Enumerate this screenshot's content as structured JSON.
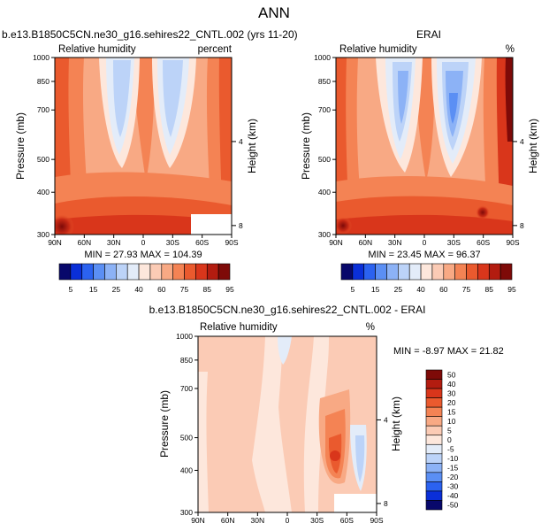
{
  "figure_title": "ANN",
  "chart_data": [
    {
      "type": "heatmap",
      "id": "model",
      "title": "b.e13.B1850C5CN.ne30_g16.sehires22_CNTL.002 (yrs 11-20)",
      "left_label": "Relative humidity",
      "right_label": "percent",
      "ylabel": "Pressure (mb)",
      "y2label": "Height (km)",
      "y_ticks": [
        "300",
        "400",
        "500",
        "700",
        "850",
        "1000"
      ],
      "y_tick_values": [
        300,
        400,
        500,
        700,
        850,
        1000
      ],
      "y2_ticks": [
        "8",
        "4"
      ],
      "y2_tick_values_km": [
        8,
        4
      ],
      "x_ticks": [
        "90N",
        "60N",
        "30N",
        "0",
        "30S",
        "60S",
        "90S"
      ],
      "x_tick_values": [
        90,
        60,
        30,
        0,
        -30,
        -60,
        -90
      ],
      "xlim": [
        90,
        -90
      ],
      "ylim": [
        1000,
        300
      ],
      "stats_text": "MIN = 27.93   MAX = 104.39",
      "min": 27.93,
      "max": 104.39,
      "colorbar_labels": [
        "5",
        "15",
        "25",
        "40",
        "60",
        "75",
        "85",
        "95"
      ]
    },
    {
      "type": "heatmap",
      "id": "obs",
      "title": "ERAI",
      "left_label": "Relative humidity",
      "right_label": "%",
      "ylabel": "Pressure (mb)",
      "y2label": "Height (km)",
      "y_ticks": [
        "300",
        "400",
        "500",
        "700",
        "850",
        "1000"
      ],
      "y_tick_values": [
        300,
        400,
        500,
        700,
        850,
        1000
      ],
      "y2_ticks": [
        "8",
        "4"
      ],
      "y2_tick_values_km": [
        8,
        4
      ],
      "x_ticks": [
        "90N",
        "60N",
        "30N",
        "0",
        "30S",
        "60S",
        "90S"
      ],
      "x_tick_values": [
        90,
        60,
        30,
        0,
        -30,
        -60,
        -90
      ],
      "xlim": [
        90,
        -90
      ],
      "ylim": [
        1000,
        300
      ],
      "stats_text": "MIN = 23.45   MAX = 96.37",
      "min": 23.45,
      "max": 96.37,
      "colorbar_labels": [
        "5",
        "15",
        "25",
        "40",
        "60",
        "75",
        "85",
        "95"
      ]
    },
    {
      "type": "heatmap",
      "id": "diff",
      "title": "b.e13.B1850C5CN.ne30_g16.sehires22_CNTL.002 - ERAI",
      "left_label": "Relative humidity",
      "right_label": "%",
      "ylabel": "Pressure (mb)",
      "y2label": "Height (km)",
      "y_ticks": [
        "300",
        "400",
        "500",
        "700",
        "850",
        "1000"
      ],
      "y_tick_values": [
        300,
        400,
        500,
        700,
        850,
        1000
      ],
      "y2_ticks": [
        "8",
        "4"
      ],
      "y2_tick_values_km": [
        8,
        4
      ],
      "x_ticks": [
        "90N",
        "60N",
        "30N",
        "0",
        "30S",
        "60S",
        "90S"
      ],
      "x_tick_values": [
        90,
        60,
        30,
        0,
        -30,
        -60,
        -90
      ],
      "xlim": [
        90,
        -90
      ],
      "ylim": [
        1000,
        300
      ],
      "stats_text": "MIN =  -8.97   MAX =  21.82",
      "min": -8.97,
      "max": 21.82,
      "colorbar_labels": [
        "50",
        "40",
        "30",
        "20",
        "15",
        "10",
        "5",
        "0",
        "-5",
        "-10",
        "-15",
        "-20",
        "-30",
        "-40",
        "-50"
      ]
    }
  ],
  "colors": {
    "abs_scale": [
      "#08086b",
      "#0a2fd8",
      "#2b62f0",
      "#5b8ff4",
      "#8cb2f6",
      "#bcd3f8",
      "#e3ecf9",
      "#fde7dc",
      "#fbcbb5",
      "#f8a984",
      "#f48354",
      "#ea5a2e",
      "#d9361b",
      "#b31c10",
      "#7e0a08"
    ],
    "diff_scale": [
      "#7e0a08",
      "#b31c10",
      "#d9361b",
      "#ea5a2e",
      "#f48354",
      "#f8a984",
      "#fbcbb5",
      "#fde7dc",
      "#e3ecf9",
      "#bcd3f8",
      "#8cb2f6",
      "#5b8ff4",
      "#2b62f0",
      "#0a2fd8",
      "#08086b"
    ]
  }
}
